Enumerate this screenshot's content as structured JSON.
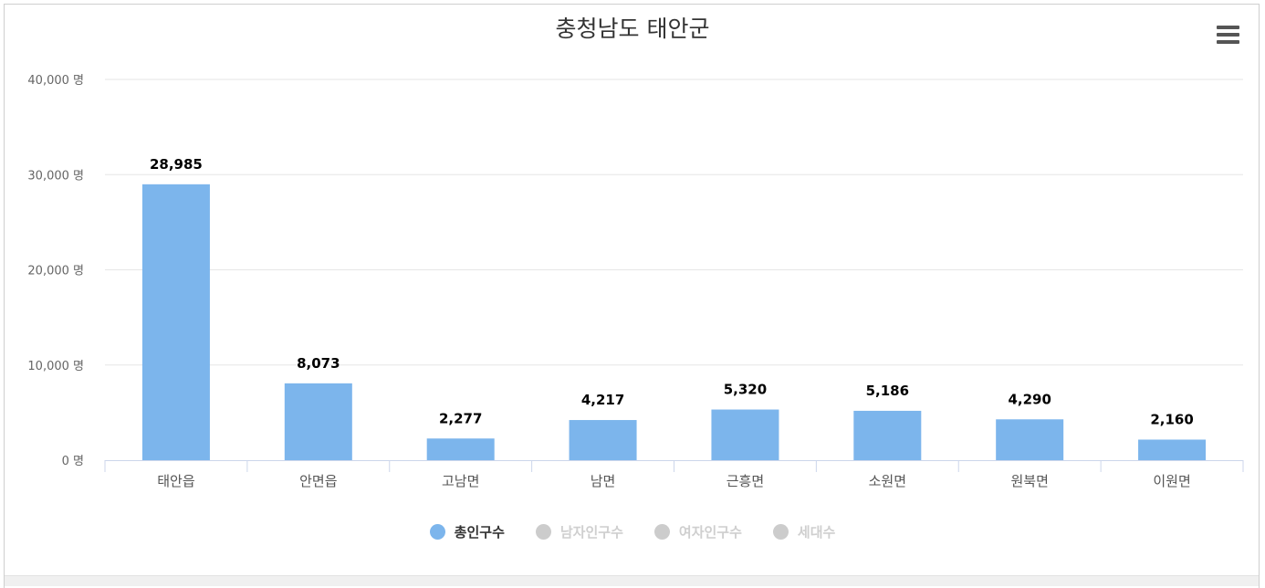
{
  "chart_data": {
    "type": "bar",
    "title": "충청남도 태안군",
    "categories": [
      "태안읍",
      "안면읍",
      "고남면",
      "남면",
      "근흥면",
      "소원면",
      "원북면",
      "이원면"
    ],
    "series": [
      {
        "name": "총인구수",
        "values": [
          28985,
          8073,
          2277,
          4217,
          5320,
          5186,
          4290,
          2160
        ],
        "color": "#7cb5ec",
        "visible": true
      },
      {
        "name": "남자인구수",
        "visible": false
      },
      {
        "name": "여자인구수",
        "visible": false
      },
      {
        "name": "세대수",
        "visible": false
      }
    ],
    "data_labels": [
      "28,985",
      "8,073",
      "2,277",
      "4,217",
      "5,320",
      "5,186",
      "4,290",
      "2,160"
    ],
    "yticks": [
      0,
      10000,
      20000,
      30000,
      40000
    ],
    "ytick_labels": [
      "0 명",
      "10,000 명",
      "20,000 명",
      "30,000 명",
      "40,000 명"
    ],
    "ylim": [
      0,
      40000
    ],
    "grid": true,
    "legend_position": "bottom-center"
  },
  "colors": {
    "bar": "#7cb5ec",
    "legend_hidden": "#cccccc",
    "grid": "#e6e6e6"
  },
  "menu": {
    "icon": "hamburger-icon"
  }
}
